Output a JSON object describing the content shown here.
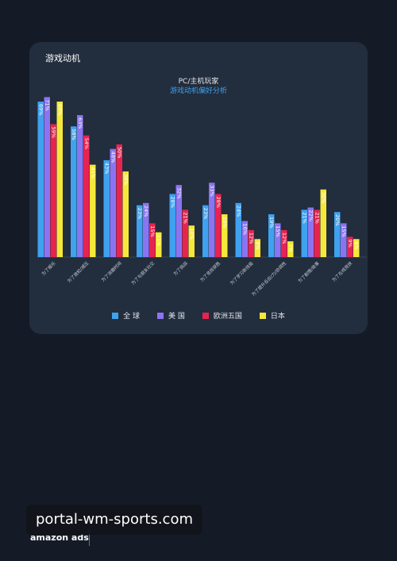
{
  "card": {
    "title": "游戏动机"
  },
  "chart_data": {
    "type": "bar",
    "title": "PC/主机玩家",
    "subtitle": "游戏动机偏好分析",
    "categories": [
      "为了娱乐",
      "为了放松/减压",
      "为了消磨时间",
      "为了与朋友社交",
      "为了挑战",
      "为了竞技获胜",
      "为了学习新技能",
      "为了提升反应/力/协调性",
      "为了剧情/故事",
      "为了在线竞技"
    ],
    "series": [
      {
        "name": "全 球",
        "color": "#3ea2f0",
        "values": [
          69,
          58,
          43,
          23,
          28,
          23,
          24,
          19,
          21,
          20
        ]
      },
      {
        "name": "美 国",
        "color": "#8b74f2",
        "values": [
          71,
          63,
          48,
          24,
          32,
          33,
          16,
          15,
          22,
          15
        ]
      },
      {
        "name": "欧洲五国",
        "color": "#e8234f",
        "values": [
          59,
          54,
          50,
          15,
          21,
          28,
          12,
          12,
          21,
          9
        ]
      },
      {
        "name": "日本",
        "color": "#f5e83a",
        "values": [
          69,
          41,
          38,
          11,
          14,
          19,
          8,
          7,
          30,
          8
        ]
      }
    ],
    "value_labels": [
      [
        "69%",
        "58%",
        "43%",
        "23%",
        "28%",
        "23%",
        "24%",
        "19%",
        "21%",
        "20%"
      ],
      [
        "71%",
        "63%",
        "48%",
        "24%",
        "32%",
        "33%",
        "16%",
        "15%",
        "22%",
        "15%"
      ],
      [
        "59%",
        "54%",
        "50%",
        "15%",
        "21%",
        "28%",
        "12%",
        "12%",
        "21%",
        "9%"
      ],
      [
        "69%",
        "41%",
        "38%",
        "11%",
        "14%",
        "19%",
        "8%",
        "7%",
        "30%",
        "8%"
      ]
    ],
    "ylim": [
      0,
      75
    ],
    "grid": false,
    "legend_position": "bottom"
  },
  "watermark": {
    "text": "portal-wm-sports.com"
  },
  "footer": {
    "logo": "amazon ads"
  }
}
